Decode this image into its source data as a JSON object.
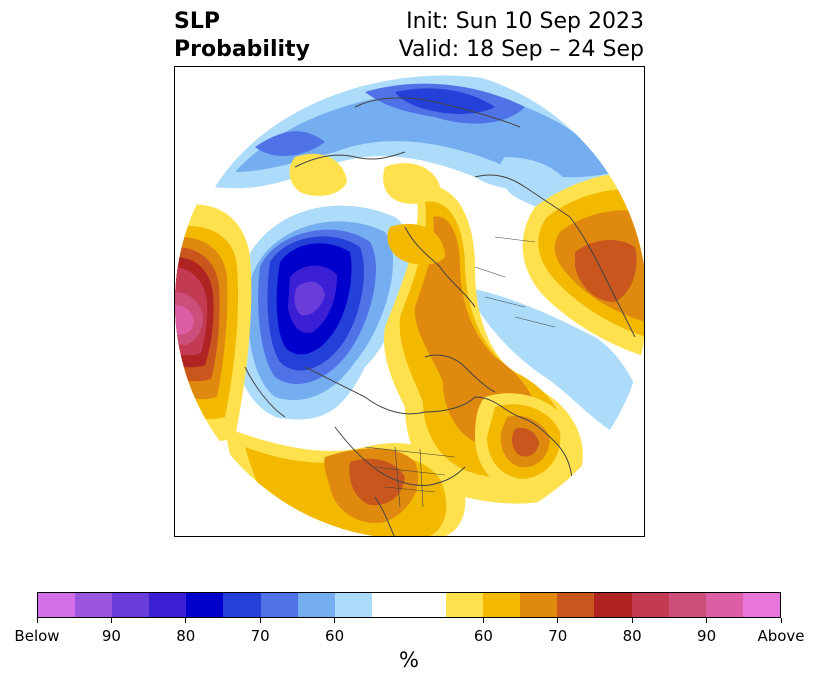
{
  "header": {
    "title_line1": "SLP",
    "title_line2": "Probability",
    "init": "Init: Sun 10 Sep 2023",
    "valid": "Valid: 18 Sep – 24 Sep"
  },
  "colorbar": {
    "unit": "%",
    "colors": [
      "#d46fe6",
      "#9b56e0",
      "#6a3ddb",
      "#3a1fd4",
      "#0000cc",
      "#2340d8",
      "#4f72e6",
      "#75aef0",
      "#acdcfa",
      "#ffffff",
      "#ffffff",
      "#ffe14d",
      "#f2b900",
      "#df8a0f",
      "#c8561d",
      "#b02323",
      "#c33b53",
      "#cc4f7b",
      "#dc5fa6",
      "#e876db"
    ],
    "tick_labels": [
      "Below",
      "90",
      "80",
      "70",
      "60",
      "60",
      "70",
      "80",
      "90",
      "Above"
    ]
  },
  "map": {
    "projection": "north-polar-stereographic",
    "levels": {
      "blue": [
        "#acdcfa",
        "#75aef0",
        "#4f72e6",
        "#2340d8",
        "#0000cc",
        "#3a1fd4",
        "#6a3ddb",
        "#9b56e0"
      ],
      "orange": [
        "#ffe14d",
        "#f2b900",
        "#df8a0f",
        "#c8561d",
        "#b02323",
        "#c33b53",
        "#cc4f7b",
        "#dc5fa6"
      ]
    }
  }
}
